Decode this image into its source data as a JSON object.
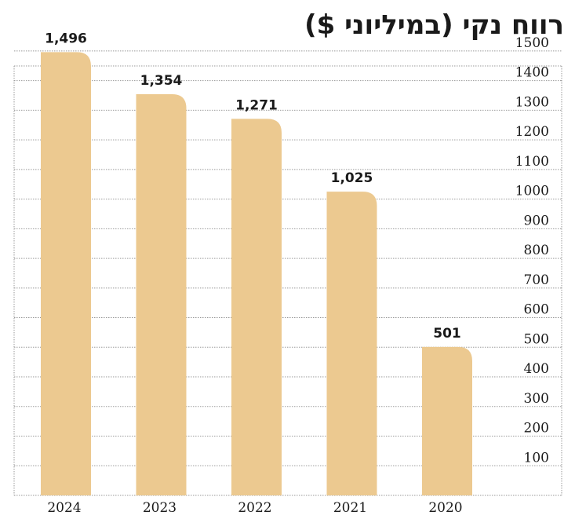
{
  "chart_data": {
    "type": "bar",
    "title": "רווח נקי (במיליוני $)",
    "categories": [
      "2024",
      "2023",
      "2022",
      "2021",
      "2020"
    ],
    "values": [
      1496,
      1354,
      1271,
      1025,
      501
    ],
    "value_labels": [
      "1,496",
      "1,354",
      "1,271",
      "1,025",
      "501"
    ],
    "y_ticks": [
      100,
      200,
      300,
      400,
      500,
      600,
      700,
      800,
      900,
      1000,
      1100,
      1200,
      1300,
      1400,
      1500
    ],
    "ylim": [
      0,
      1500
    ],
    "y_axis_side": "right",
    "grid": true,
    "xlabel": "",
    "ylabel": "",
    "bar_color": "#ECC990",
    "grid_color": "#9a9a9a",
    "text_color": "#1a1a1a"
  }
}
